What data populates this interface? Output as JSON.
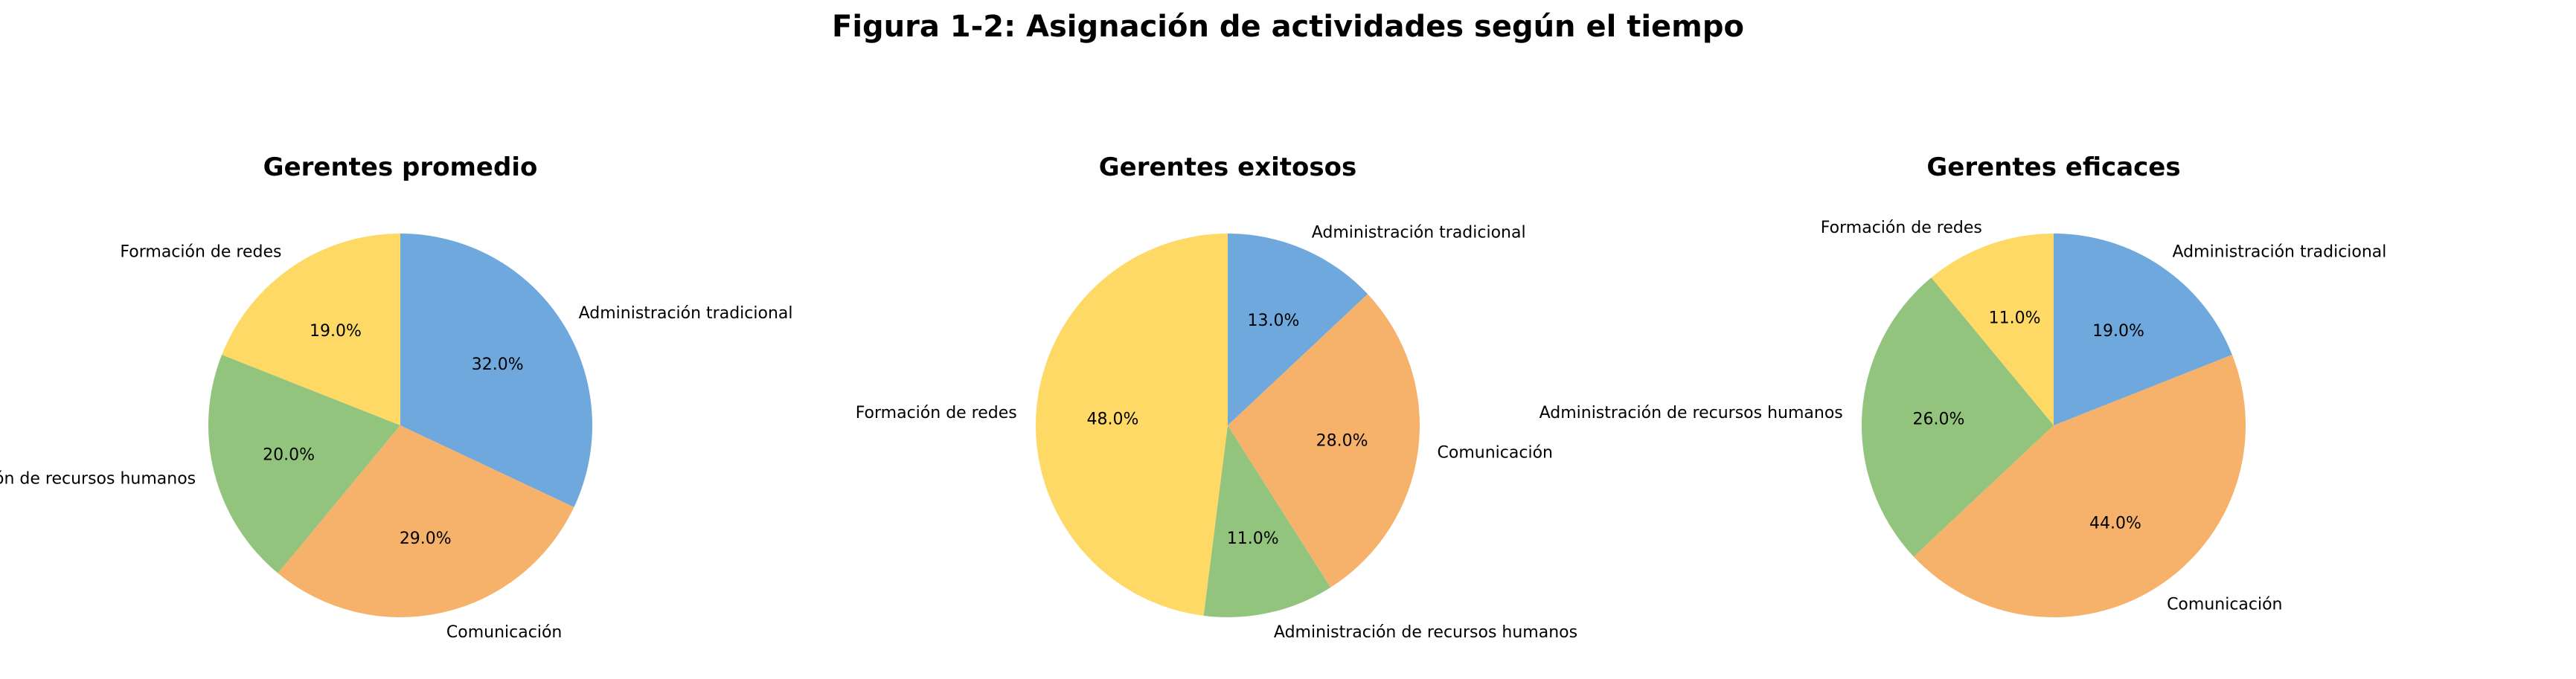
{
  "figure_title": "Figura 1-2: Asignación de actividades según el tiempo",
  "colors": {
    "Administración tradicional": "#6fa8dc",
    "Comunicación": "#f6b26b",
    "Administración de recursos humanos": "#93c47d",
    "Formación de redes": "#ffd966"
  },
  "chart_data": [
    {
      "type": "pie",
      "title": "Gerentes promedio",
      "slices": [
        {
          "label": "Formación de redes",
          "value": 19.0,
          "text": "19.0%"
        },
        {
          "label": "Administración de recursos humanos",
          "value": 20.0,
          "text": "20.0%"
        },
        {
          "label": "Comunicación",
          "value": 29.0,
          "text": "29.0%"
        },
        {
          "label": "Administración tradicional",
          "value": 32.0,
          "text": "32.0%"
        }
      ]
    },
    {
      "type": "pie",
      "title": "Gerentes exitosos",
      "slices": [
        {
          "label": "Formación de redes",
          "value": 48.0,
          "text": "48.0%"
        },
        {
          "label": "Administración de recursos humanos",
          "value": 11.0,
          "text": "11.0%"
        },
        {
          "label": "Comunicación",
          "value": 28.0,
          "text": "28.0%"
        },
        {
          "label": "Administración tradicional",
          "value": 13.0,
          "text": "13.0%"
        }
      ]
    },
    {
      "type": "pie",
      "title": "Gerentes eficaces",
      "slices": [
        {
          "label": "Formación de redes",
          "value": 11.0,
          "text": "11.0%"
        },
        {
          "label": "Administración de recursos humanos",
          "value": 26.0,
          "text": "26.0%"
        },
        {
          "label": "Comunicación",
          "value": 44.0,
          "text": "44.0%"
        },
        {
          "label": "Administración tradicional",
          "value": 19.0,
          "text": "19.0%"
        }
      ]
    }
  ]
}
